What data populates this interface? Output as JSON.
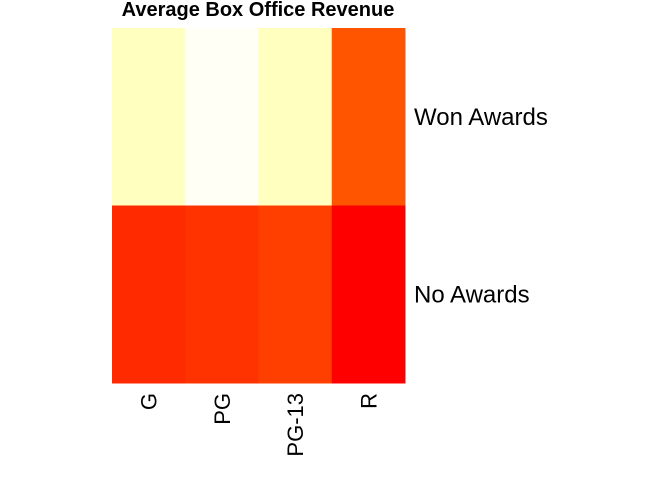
{
  "chart_data": {
    "type": "heatmap",
    "title": "Average Box Office Revenue",
    "xlabel": "",
    "ylabel": "",
    "columns": [
      "G",
      "PG",
      "PG-13",
      "R"
    ],
    "rows": [
      "Won Awards",
      "No Awards"
    ],
    "cell_colors": [
      [
        "#FFFFBF",
        "#FFFFF5",
        "#FFFFBF",
        "#FF5500"
      ],
      [
        "#FF2A00",
        "#FF3300",
        "#FF3F00",
        "#FF0000"
      ]
    ],
    "color_scale": "heat (white-yellow = low, red = high)",
    "legend": "none",
    "grid": false
  }
}
